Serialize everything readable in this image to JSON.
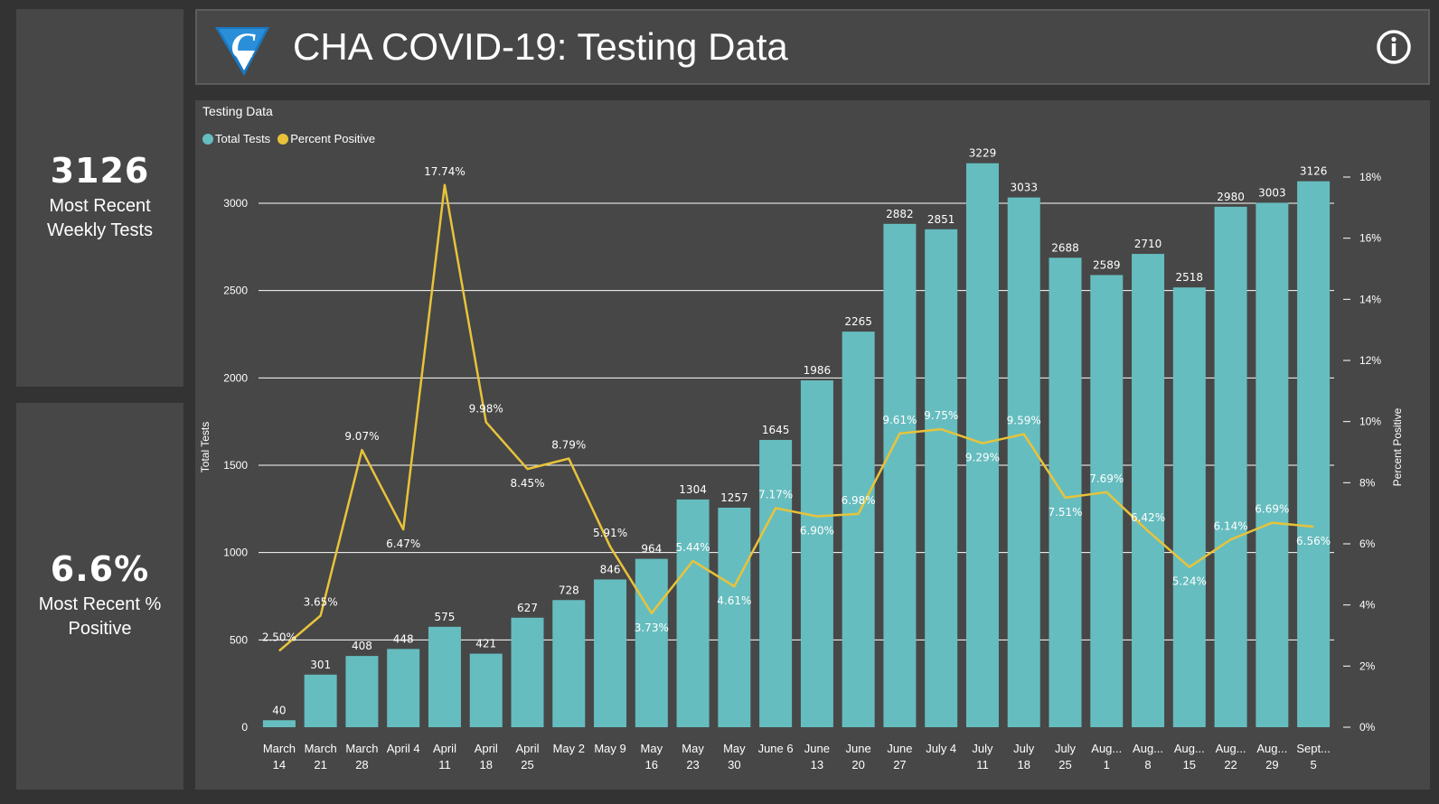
{
  "kpis": [
    {
      "value": "3126",
      "label": "Most Recent Weekly Tests"
    },
    {
      "value": "6.6%",
      "label": "Most Recent % Positive"
    }
  ],
  "header": {
    "title": "CHA COVID-19: Testing Data",
    "logo_letter": "C"
  },
  "panel": {
    "title": "Testing Data"
  },
  "colors": {
    "bar": "#66BDBF",
    "line": "#E8C33A",
    "background": "#333333",
    "panel": "#474747"
  },
  "chart_data": {
    "type": "bar",
    "title": "Testing Data",
    "legend": [
      "Total Tests",
      "Percent Positive"
    ],
    "legend_position": "top-left",
    "ylabel": "Total Tests",
    "y2label": "Percent Positive",
    "ylim": [
      0,
      3150
    ],
    "y_ticks": [
      0,
      500,
      1000,
      1500,
      2000,
      2500,
      3000
    ],
    "y2lim": [
      0,
      18
    ],
    "y2_ticks": [
      "0%",
      "2%",
      "4%",
      "6%",
      "8%",
      "10%",
      "12%",
      "14%",
      "16%",
      "18%"
    ],
    "grid": true,
    "categories": [
      [
        "March",
        "14"
      ],
      [
        "March",
        "21"
      ],
      [
        "March",
        "28"
      ],
      [
        "April 4",
        ""
      ],
      [
        "April",
        "11"
      ],
      [
        "April",
        "18"
      ],
      [
        "April",
        "25"
      ],
      [
        "May 2",
        ""
      ],
      [
        "May 9",
        ""
      ],
      [
        "May",
        "16"
      ],
      [
        "May",
        "23"
      ],
      [
        "May",
        "30"
      ],
      [
        "June 6",
        ""
      ],
      [
        "June",
        "13"
      ],
      [
        "June",
        "20"
      ],
      [
        "June",
        "27"
      ],
      [
        "July 4",
        ""
      ],
      [
        "July",
        "11"
      ],
      [
        "July",
        "18"
      ],
      [
        "July",
        "25"
      ],
      [
        "Aug...",
        "1"
      ],
      [
        "Aug...",
        "8"
      ],
      [
        "Aug...",
        "15"
      ],
      [
        "Aug...",
        "22"
      ],
      [
        "Aug...",
        "29"
      ],
      [
        "Sept...",
        "5"
      ]
    ],
    "series": [
      {
        "name": "Total Tests",
        "type": "bar",
        "values": [
          40,
          301,
          408,
          448,
          575,
          421,
          627,
          728,
          846,
          964,
          1304,
          1257,
          1645,
          1986,
          2265,
          2882,
          2851,
          3229,
          3033,
          2688,
          2589,
          2710,
          2518,
          2980,
          3003,
          3126
        ]
      },
      {
        "name": "Percent Positive",
        "type": "line",
        "values": [
          2.5,
          3.65,
          9.07,
          6.47,
          17.74,
          9.98,
          8.45,
          8.79,
          5.91,
          3.73,
          5.44,
          4.61,
          7.17,
          6.9,
          6.98,
          9.61,
          9.75,
          9.29,
          9.59,
          7.51,
          7.69,
          6.42,
          5.24,
          6.14,
          6.69,
          6.56
        ],
        "labels": [
          "2.50%",
          "3.65%",
          "9.07%",
          "6.47%",
          "17.74%",
          "9.98%",
          "8.45%",
          "8.79%",
          "5.91%",
          "3.73%",
          "5.44%",
          "4.61%",
          "7.17%",
          "6.90%",
          "6.98%",
          "9.61%",
          "9.75%",
          "9.29%",
          "9.59%",
          "7.51%",
          "7.69%",
          "6.42%",
          "5.24%",
          "6.14%",
          "6.69%",
          "6.56%"
        ]
      }
    ]
  }
}
